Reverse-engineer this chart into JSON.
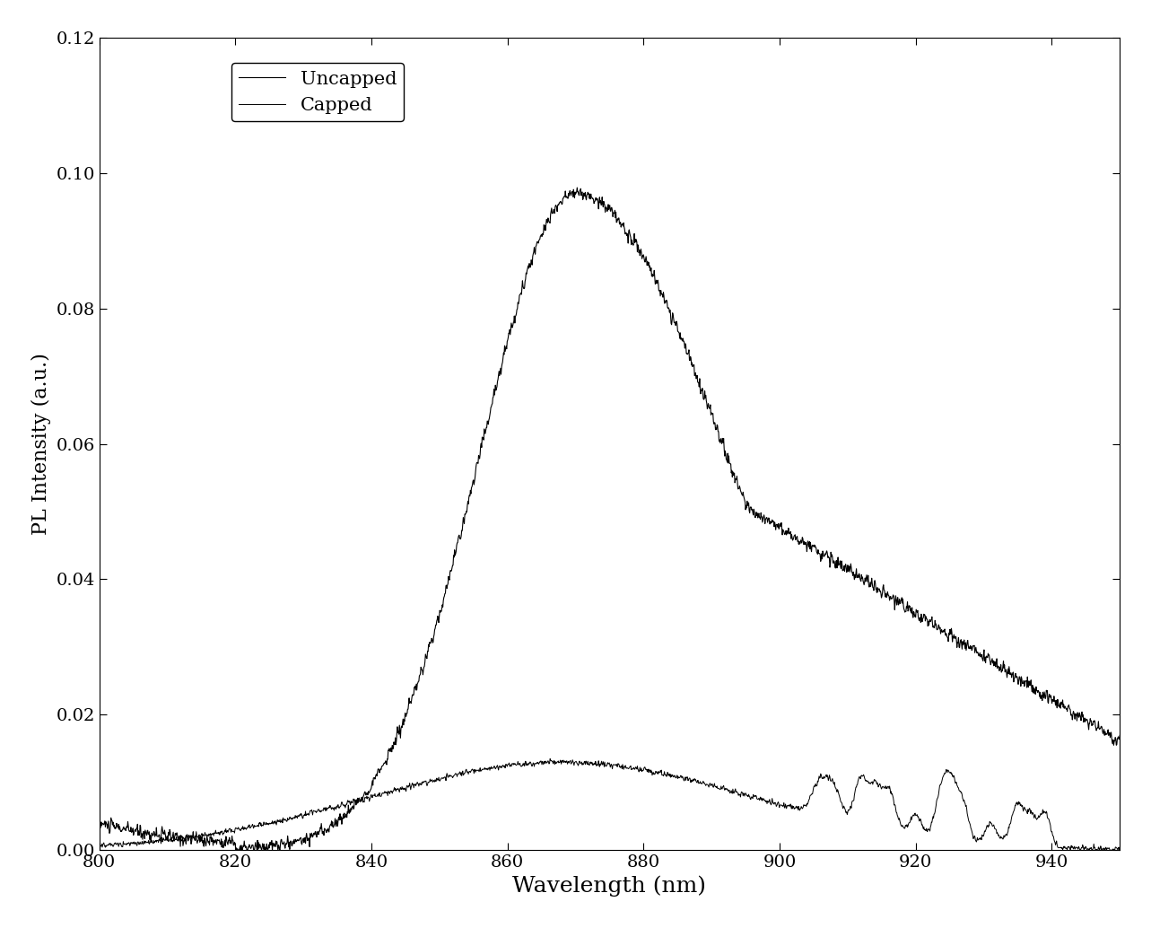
{
  "title": "",
  "xlabel": "Wavelength (nm)",
  "ylabel": "PL Intensity (a.u.)",
  "xlim": [
    800,
    950
  ],
  "ylim": [
    0,
    0.12
  ],
  "xticks": [
    800,
    820,
    840,
    860,
    880,
    900,
    920,
    940
  ],
  "yticks": [
    0.0,
    0.02,
    0.04,
    0.06,
    0.08,
    0.1,
    0.12
  ],
  "legend_labels": [
    "Uncapped",
    "Capped"
  ],
  "line_color": "#000000",
  "background_color": "#ffffff",
  "xlabel_fontsize": 18,
  "ylabel_fontsize": 16,
  "tick_fontsize": 14,
  "legend_fontsize": 15,
  "figsize": [
    12.83,
    10.34
  ],
  "dpi": 100
}
